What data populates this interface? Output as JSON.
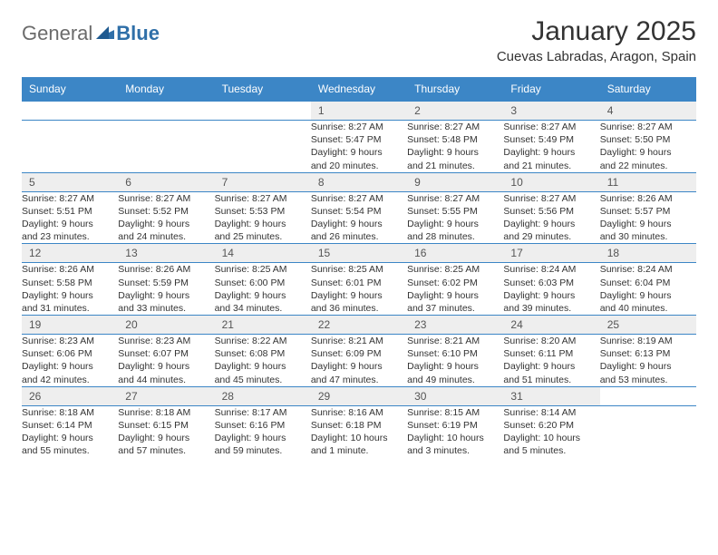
{
  "logo": {
    "general": "General",
    "blue": "Blue"
  },
  "header": {
    "title": "January 2025",
    "location": "Cuevas Labradas, Aragon, Spain"
  },
  "colors": {
    "header_bg": "#3c86c6",
    "header_text": "#ffffff",
    "daynum_bg": "#eeeeee",
    "cell_border": "#3c86c6",
    "text": "#333333",
    "logo_gray": "#6b6b6b",
    "logo_blue": "#2f6fa8"
  },
  "weekdays": [
    "Sunday",
    "Monday",
    "Tuesday",
    "Wednesday",
    "Thursday",
    "Friday",
    "Saturday"
  ],
  "weeks": [
    [
      null,
      null,
      null,
      {
        "n": "1",
        "sr": "Sunrise: 8:27 AM",
        "ss": "Sunset: 5:47 PM",
        "d1": "Daylight: 9 hours",
        "d2": "and 20 minutes."
      },
      {
        "n": "2",
        "sr": "Sunrise: 8:27 AM",
        "ss": "Sunset: 5:48 PM",
        "d1": "Daylight: 9 hours",
        "d2": "and 21 minutes."
      },
      {
        "n": "3",
        "sr": "Sunrise: 8:27 AM",
        "ss": "Sunset: 5:49 PM",
        "d1": "Daylight: 9 hours",
        "d2": "and 21 minutes."
      },
      {
        "n": "4",
        "sr": "Sunrise: 8:27 AM",
        "ss": "Sunset: 5:50 PM",
        "d1": "Daylight: 9 hours",
        "d2": "and 22 minutes."
      }
    ],
    [
      {
        "n": "5",
        "sr": "Sunrise: 8:27 AM",
        "ss": "Sunset: 5:51 PM",
        "d1": "Daylight: 9 hours",
        "d2": "and 23 minutes."
      },
      {
        "n": "6",
        "sr": "Sunrise: 8:27 AM",
        "ss": "Sunset: 5:52 PM",
        "d1": "Daylight: 9 hours",
        "d2": "and 24 minutes."
      },
      {
        "n": "7",
        "sr": "Sunrise: 8:27 AM",
        "ss": "Sunset: 5:53 PM",
        "d1": "Daylight: 9 hours",
        "d2": "and 25 minutes."
      },
      {
        "n": "8",
        "sr": "Sunrise: 8:27 AM",
        "ss": "Sunset: 5:54 PM",
        "d1": "Daylight: 9 hours",
        "d2": "and 26 minutes."
      },
      {
        "n": "9",
        "sr": "Sunrise: 8:27 AM",
        "ss": "Sunset: 5:55 PM",
        "d1": "Daylight: 9 hours",
        "d2": "and 28 minutes."
      },
      {
        "n": "10",
        "sr": "Sunrise: 8:27 AM",
        "ss": "Sunset: 5:56 PM",
        "d1": "Daylight: 9 hours",
        "d2": "and 29 minutes."
      },
      {
        "n": "11",
        "sr": "Sunrise: 8:26 AM",
        "ss": "Sunset: 5:57 PM",
        "d1": "Daylight: 9 hours",
        "d2": "and 30 minutes."
      }
    ],
    [
      {
        "n": "12",
        "sr": "Sunrise: 8:26 AM",
        "ss": "Sunset: 5:58 PM",
        "d1": "Daylight: 9 hours",
        "d2": "and 31 minutes."
      },
      {
        "n": "13",
        "sr": "Sunrise: 8:26 AM",
        "ss": "Sunset: 5:59 PM",
        "d1": "Daylight: 9 hours",
        "d2": "and 33 minutes."
      },
      {
        "n": "14",
        "sr": "Sunrise: 8:25 AM",
        "ss": "Sunset: 6:00 PM",
        "d1": "Daylight: 9 hours",
        "d2": "and 34 minutes."
      },
      {
        "n": "15",
        "sr": "Sunrise: 8:25 AM",
        "ss": "Sunset: 6:01 PM",
        "d1": "Daylight: 9 hours",
        "d2": "and 36 minutes."
      },
      {
        "n": "16",
        "sr": "Sunrise: 8:25 AM",
        "ss": "Sunset: 6:02 PM",
        "d1": "Daylight: 9 hours",
        "d2": "and 37 minutes."
      },
      {
        "n": "17",
        "sr": "Sunrise: 8:24 AM",
        "ss": "Sunset: 6:03 PM",
        "d1": "Daylight: 9 hours",
        "d2": "and 39 minutes."
      },
      {
        "n": "18",
        "sr": "Sunrise: 8:24 AM",
        "ss": "Sunset: 6:04 PM",
        "d1": "Daylight: 9 hours",
        "d2": "and 40 minutes."
      }
    ],
    [
      {
        "n": "19",
        "sr": "Sunrise: 8:23 AM",
        "ss": "Sunset: 6:06 PM",
        "d1": "Daylight: 9 hours",
        "d2": "and 42 minutes."
      },
      {
        "n": "20",
        "sr": "Sunrise: 8:23 AM",
        "ss": "Sunset: 6:07 PM",
        "d1": "Daylight: 9 hours",
        "d2": "and 44 minutes."
      },
      {
        "n": "21",
        "sr": "Sunrise: 8:22 AM",
        "ss": "Sunset: 6:08 PM",
        "d1": "Daylight: 9 hours",
        "d2": "and 45 minutes."
      },
      {
        "n": "22",
        "sr": "Sunrise: 8:21 AM",
        "ss": "Sunset: 6:09 PM",
        "d1": "Daylight: 9 hours",
        "d2": "and 47 minutes."
      },
      {
        "n": "23",
        "sr": "Sunrise: 8:21 AM",
        "ss": "Sunset: 6:10 PM",
        "d1": "Daylight: 9 hours",
        "d2": "and 49 minutes."
      },
      {
        "n": "24",
        "sr": "Sunrise: 8:20 AM",
        "ss": "Sunset: 6:11 PM",
        "d1": "Daylight: 9 hours",
        "d2": "and 51 minutes."
      },
      {
        "n": "25",
        "sr": "Sunrise: 8:19 AM",
        "ss": "Sunset: 6:13 PM",
        "d1": "Daylight: 9 hours",
        "d2": "and 53 minutes."
      }
    ],
    [
      {
        "n": "26",
        "sr": "Sunrise: 8:18 AM",
        "ss": "Sunset: 6:14 PM",
        "d1": "Daylight: 9 hours",
        "d2": "and 55 minutes."
      },
      {
        "n": "27",
        "sr": "Sunrise: 8:18 AM",
        "ss": "Sunset: 6:15 PM",
        "d1": "Daylight: 9 hours",
        "d2": "and 57 minutes."
      },
      {
        "n": "28",
        "sr": "Sunrise: 8:17 AM",
        "ss": "Sunset: 6:16 PM",
        "d1": "Daylight: 9 hours",
        "d2": "and 59 minutes."
      },
      {
        "n": "29",
        "sr": "Sunrise: 8:16 AM",
        "ss": "Sunset: 6:18 PM",
        "d1": "Daylight: 10 hours",
        "d2": "and 1 minute."
      },
      {
        "n": "30",
        "sr": "Sunrise: 8:15 AM",
        "ss": "Sunset: 6:19 PM",
        "d1": "Daylight: 10 hours",
        "d2": "and 3 minutes."
      },
      {
        "n": "31",
        "sr": "Sunrise: 8:14 AM",
        "ss": "Sunset: 6:20 PM",
        "d1": "Daylight: 10 hours",
        "d2": "and 5 minutes."
      },
      null
    ]
  ]
}
